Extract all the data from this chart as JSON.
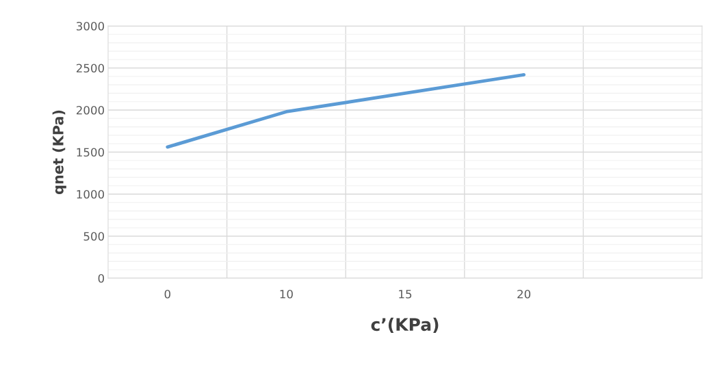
{
  "chart_data": {
    "type": "line",
    "xlabel": "c’(KPa)",
    "ylabel": "qnet (KPa)",
    "categories": [
      "0",
      "10",
      "15",
      "20",
      null
    ],
    "series": [
      {
        "color": "#5b9bd5",
        "values": [
          1560,
          1980,
          2200,
          2420,
          null
        ]
      }
    ],
    "ylim": [
      0,
      3000
    ],
    "yticks": [
      0,
      500,
      1000,
      1500,
      2000,
      2500,
      3000
    ],
    "grid": true,
    "marker": "none",
    "line_style": "solid"
  }
}
